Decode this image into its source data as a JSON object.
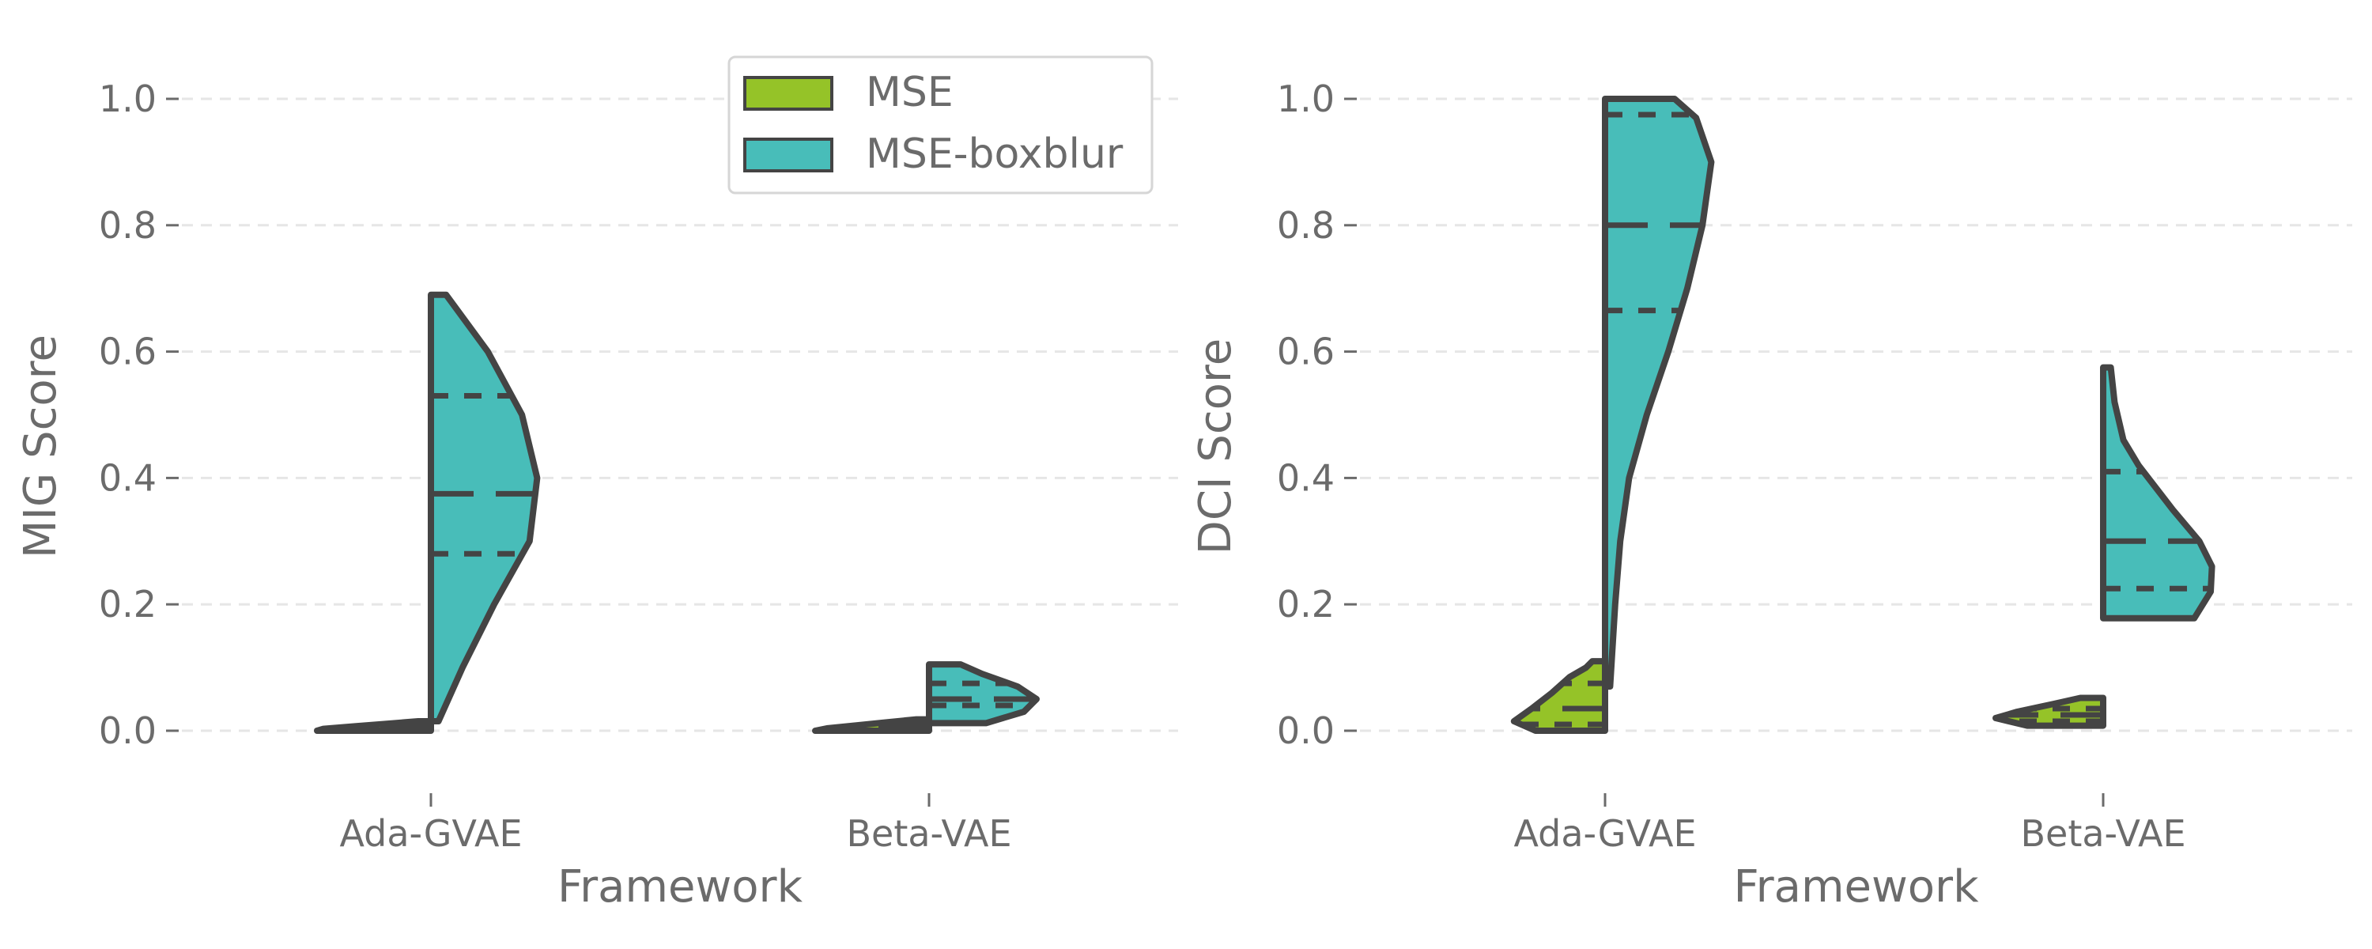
{
  "colors": {
    "MSE": "#95c328",
    "MSE-boxblur": "#48bdb9",
    "outline": "#444444"
  },
  "legend": {
    "placement": "upper-center (left panel)",
    "entries": [
      {
        "name": "MSE",
        "color": "#95c328"
      },
      {
        "name": "MSE-boxblur",
        "color": "#48bdb9"
      }
    ]
  },
  "chart_data": [
    {
      "type": "split-violin",
      "xlabel": "Framework",
      "ylabel": "MIG Score",
      "ylim": [
        -0.1,
        1.1
      ],
      "yticks": [
        0.0,
        0.2,
        0.4,
        0.6,
        0.8,
        1.0
      ],
      "ytick_labels": [
        "0.0",
        "0.2",
        "0.4",
        "0.6",
        "0.8",
        "1.0"
      ],
      "grid": "horizontal-dashed",
      "categories": [
        "Ada-GVAE",
        "Beta-VAE"
      ],
      "series": [
        {
          "name": "MSE",
          "side": "left",
          "violins": [
            {
              "min": 0.0,
              "max": 0.015,
              "q1": 0.004,
              "median": 0.007,
              "q3": 0.01,
              "profile": [
                [
                  0.0,
                  0.9
                ],
                [
                  0.003,
                  0.85
                ],
                [
                  0.007,
                  0.6
                ],
                [
                  0.011,
                  0.35
                ],
                [
                  0.015,
                  0.1
                ]
              ]
            },
            {
              "min": 0.0,
              "max": 0.018,
              "q1": 0.005,
              "median": 0.009,
              "q3": 0.013,
              "profile": [
                [
                  0.0,
                  0.9
                ],
                [
                  0.004,
                  0.8
                ],
                [
                  0.009,
                  0.55
                ],
                [
                  0.013,
                  0.35
                ],
                [
                  0.018,
                  0.1
                ]
              ]
            }
          ]
        },
        {
          "name": "MSE-boxblur",
          "side": "right",
          "violins": [
            {
              "min": 0.015,
              "max": 0.69,
              "q1": 0.28,
              "median": 0.375,
              "q3": 0.53,
              "profile": [
                [
                  0.015,
                  0.06
                ],
                [
                  0.1,
                  0.25
                ],
                [
                  0.2,
                  0.5
                ],
                [
                  0.3,
                  0.78
                ],
                [
                  0.4,
                  0.84
                ],
                [
                  0.5,
                  0.72
                ],
                [
                  0.6,
                  0.45
                ],
                [
                  0.69,
                  0.12
                ]
              ]
            },
            {
              "min": 0.012,
              "max": 0.105,
              "q1": 0.04,
              "median": 0.05,
              "q3": 0.075,
              "profile": [
                [
                  0.012,
                  0.45
                ],
                [
                  0.03,
                  0.75
                ],
                [
                  0.05,
                  0.85
                ],
                [
                  0.07,
                  0.7
                ],
                [
                  0.09,
                  0.42
                ],
                [
                  0.105,
                  0.25
                ]
              ]
            }
          ]
        }
      ]
    },
    {
      "type": "split-violin",
      "xlabel": "Framework",
      "ylabel": "DCI Score",
      "ylim": [
        -0.1,
        1.1
      ],
      "yticks": [
        0.0,
        0.2,
        0.4,
        0.6,
        0.8,
        1.0
      ],
      "ytick_labels": [
        "0.0",
        "0.2",
        "0.4",
        "0.6",
        "0.8",
        "1.0"
      ],
      "grid": "horizontal-dashed",
      "categories": [
        "Ada-GVAE",
        "Beta-VAE"
      ],
      "series": [
        {
          "name": "MSE",
          "side": "left",
          "violins": [
            {
              "min": 0.0,
              "max": 0.11,
              "q1": 0.01,
              "median": 0.035,
              "q3": 0.075,
              "profile": [
                [
                  0.0,
                  0.55
                ],
                [
                  0.015,
                  0.72
                ],
                [
                  0.035,
                  0.58
                ],
                [
                  0.06,
                  0.42
                ],
                [
                  0.085,
                  0.28
                ],
                [
                  0.1,
                  0.15
                ],
                [
                  0.11,
                  0.1
                ]
              ]
            },
            {
              "min": 0.008,
              "max": 0.052,
              "q1": 0.015,
              "median": 0.025,
              "q3": 0.035,
              "profile": [
                [
                  0.008,
                  0.6
                ],
                [
                  0.02,
                  0.85
                ],
                [
                  0.03,
                  0.68
                ],
                [
                  0.042,
                  0.4
                ],
                [
                  0.052,
                  0.18
                ]
              ]
            }
          ]
        },
        {
          "name": "MSE-boxblur",
          "side": "right",
          "violins": [
            {
              "min": 0.07,
              "max": 1.0,
              "q1": 0.665,
              "median": 0.8,
              "q3": 0.975,
              "profile": [
                [
                  0.07,
                  0.04
                ],
                [
                  0.2,
                  0.08
                ],
                [
                  0.3,
                  0.12
                ],
                [
                  0.4,
                  0.19
                ],
                [
                  0.5,
                  0.33
                ],
                [
                  0.6,
                  0.5
                ],
                [
                  0.7,
                  0.65
                ],
                [
                  0.8,
                  0.77
                ],
                [
                  0.9,
                  0.84
                ],
                [
                  0.97,
                  0.72
                ],
                [
                  1.0,
                  0.55
                ]
              ]
            },
            {
              "min": 0.178,
              "max": 0.575,
              "q1": 0.225,
              "median": 0.3,
              "q3": 0.41,
              "profile": [
                [
                  0.178,
                  0.72
                ],
                [
                  0.22,
                  0.85
                ],
                [
                  0.26,
                  0.86
                ],
                [
                  0.3,
                  0.76
                ],
                [
                  0.35,
                  0.55
                ],
                [
                  0.42,
                  0.28
                ],
                [
                  0.46,
                  0.16
                ],
                [
                  0.52,
                  0.09
                ],
                [
                  0.575,
                  0.06
                ]
              ]
            }
          ]
        }
      ]
    }
  ]
}
